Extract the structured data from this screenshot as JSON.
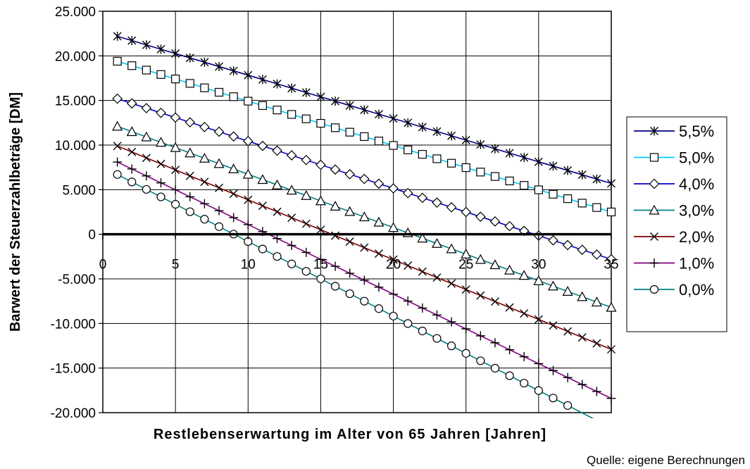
{
  "chart_data": {
    "type": "line",
    "xlabel": "Restlebenserwartung im Alter von 65 Jahren [Jahren]",
    "ylabel": "Barwert der Steuerzahlbeträge [DM]",
    "source": "Quelle: eigene Berechnungen",
    "xlim": [
      0,
      35
    ],
    "ylim": [
      -20000,
      25000
    ],
    "x_ticks": [
      0,
      5,
      10,
      15,
      20,
      25,
      30,
      35
    ],
    "x_tick_labels": [
      "0",
      "5",
      "10",
      "15",
      "20",
      "25",
      "30",
      "35"
    ],
    "y_ticks": [
      25000,
      20000,
      15000,
      10000,
      5000,
      0,
      -5000,
      -10000,
      -15000,
      -20000
    ],
    "y_tick_labels": [
      "25.000",
      "20.000",
      "15.000",
      "10.000",
      "5.000",
      "0",
      "-5.000",
      "-10.000",
      "-15.000",
      "-20.000"
    ],
    "grid": true,
    "legend_position": "right",
    "x": [
      1,
      35
    ],
    "series": [
      {
        "name": "5,5%",
        "values": [
          22200,
          5700
        ],
        "color": "#000080",
        "marker": "star"
      },
      {
        "name": "5,0%",
        "values": [
          19400,
          2500
        ],
        "color": "#00ccff",
        "marker": "square"
      },
      {
        "name": "4,0%",
        "values": [
          15200,
          -2800
        ],
        "color": "#0000cc",
        "marker": "diamond"
      },
      {
        "name": "3,0%",
        "values": [
          12100,
          -8200
        ],
        "color": "#008080",
        "marker": "triangle"
      },
      {
        "name": "2,0%",
        "values": [
          9900,
          -12900
        ],
        "color": "#800000",
        "marker": "x"
      },
      {
        "name": "1,0%",
        "values": [
          8100,
          -18400
        ],
        "color": "#800080",
        "marker": "plus"
      },
      {
        "name": "0,0%",
        "values": [
          6700,
          -21700
        ],
        "color": "#008080",
        "marker": "circle"
      }
    ]
  }
}
